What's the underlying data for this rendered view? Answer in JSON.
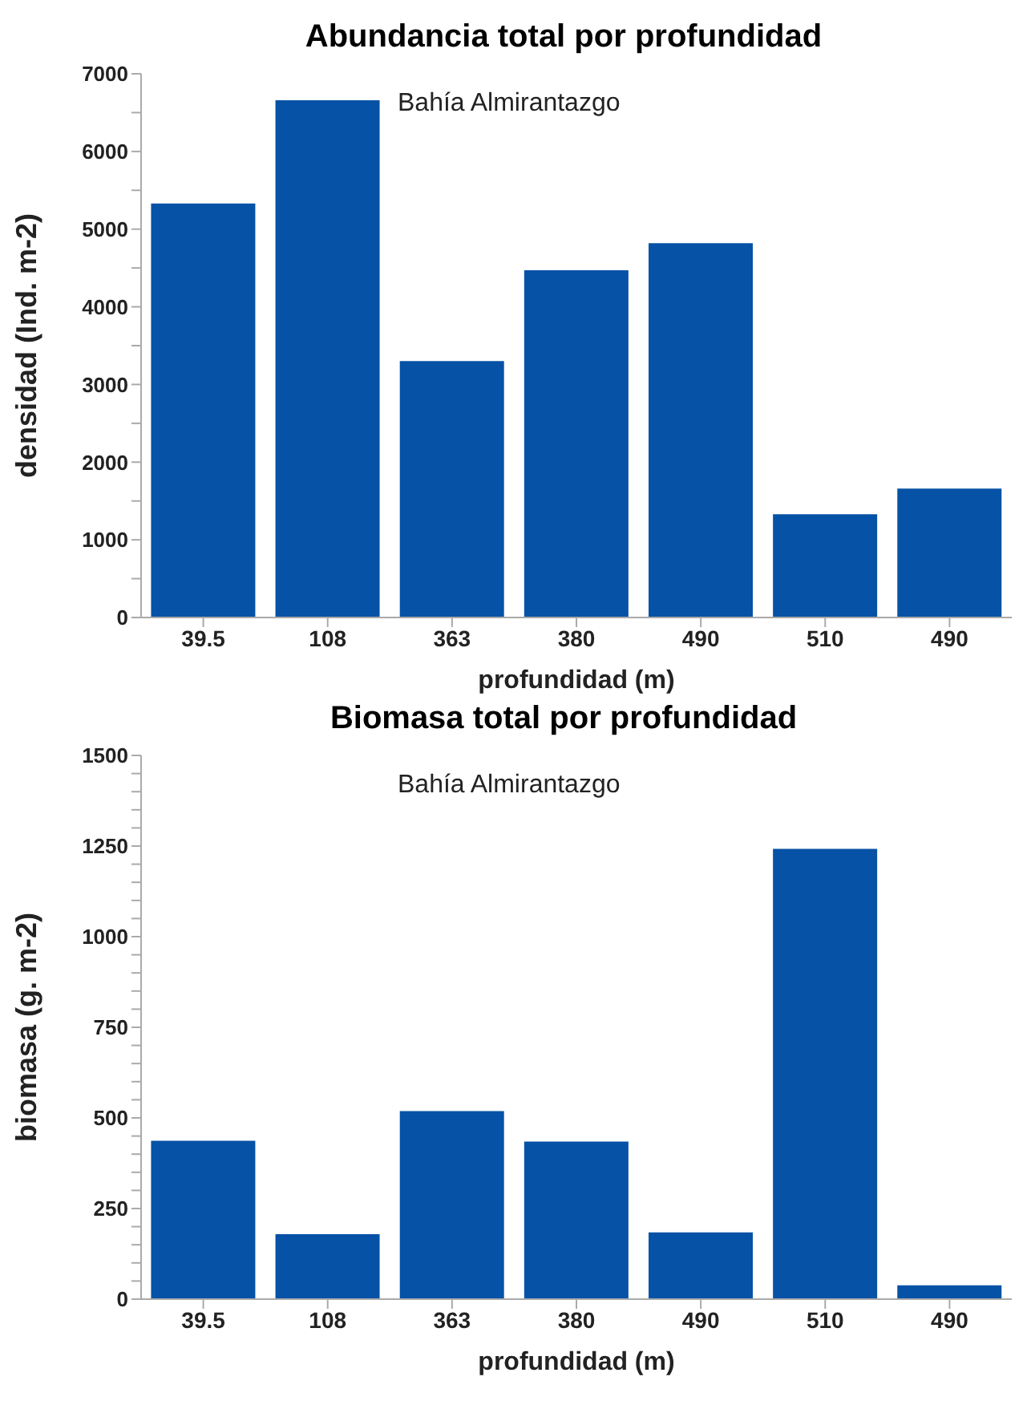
{
  "chart_data": [
    {
      "type": "bar",
      "title": "Abundancia total por profundidad",
      "xlabel": "profundidad (m)",
      "ylabel": "densidad (Ind. m-2)",
      "annotations": [
        "Bahía Almirantazgo"
      ],
      "categories": [
        "39.5",
        "108",
        "363",
        "380",
        "490",
        "510",
        "490"
      ],
      "values": [
        5330,
        6660,
        3300,
        4470,
        4820,
        1330,
        1660
      ],
      "color": "#0652a6",
      "ylim": [
        0,
        7000
      ],
      "yticks": [
        0,
        {
          "value": 500,
          "label": null
        },
        1000,
        {
          "value": 1500,
          "label": null
        },
        2000,
        {
          "value": 2500,
          "label": null
        },
        3000,
        {
          "value": 3500,
          "label": null
        },
        4000,
        {
          "value": 4500,
          "label": null
        },
        5000,
        {
          "value": 5500,
          "label": null
        },
        6000,
        {
          "value": 6500,
          "label": null
        },
        7000
      ],
      "grid": false
    },
    {
      "type": "bar",
      "title": "Biomasa total por profundidad",
      "xlabel": "profundidad (m)",
      "ylabel": "biomasa (g. m-2)",
      "annotations": [
        "Bahía Almirantazgo"
      ],
      "categories": [
        "39.5",
        "108",
        "363",
        "380",
        "490",
        "510",
        "490"
      ],
      "values": [
        437,
        179,
        519,
        435,
        184,
        1242,
        38
      ],
      "color": "#0652a6",
      "ylim": [
        0,
        1500
      ],
      "yticks": [
        0,
        {
          "value": 50,
          "label": null
        },
        {
          "value": 100,
          "label": null
        },
        {
          "value": 150,
          "label": null
        },
        {
          "value": 200,
          "label": null
        },
        250,
        {
          "value": 300,
          "label": null
        },
        {
          "value": 350,
          "label": null
        },
        {
          "value": 400,
          "label": null
        },
        {
          "value": 450,
          "label": null
        },
        500,
        {
          "value": 550,
          "label": null
        },
        {
          "value": 600,
          "label": null
        },
        {
          "value": 650,
          "label": null
        },
        {
          "value": 700,
          "label": null
        },
        750,
        {
          "value": 800,
          "label": null
        },
        {
          "value": 850,
          "label": null
        },
        {
          "value": 900,
          "label": null
        },
        {
          "value": 950,
          "label": null
        },
        1000,
        {
          "value": 1050,
          "label": null
        },
        {
          "value": 1100,
          "label": null
        },
        {
          "value": 1150,
          "label": null
        },
        {
          "value": 1200,
          "label": null
        },
        1250,
        {
          "value": 1300,
          "label": null
        },
        {
          "value": 1350,
          "label": null
        },
        {
          "value": 1400,
          "label": null
        },
        {
          "value": 1450,
          "label": null
        },
        1500
      ],
      "grid": false
    }
  ]
}
